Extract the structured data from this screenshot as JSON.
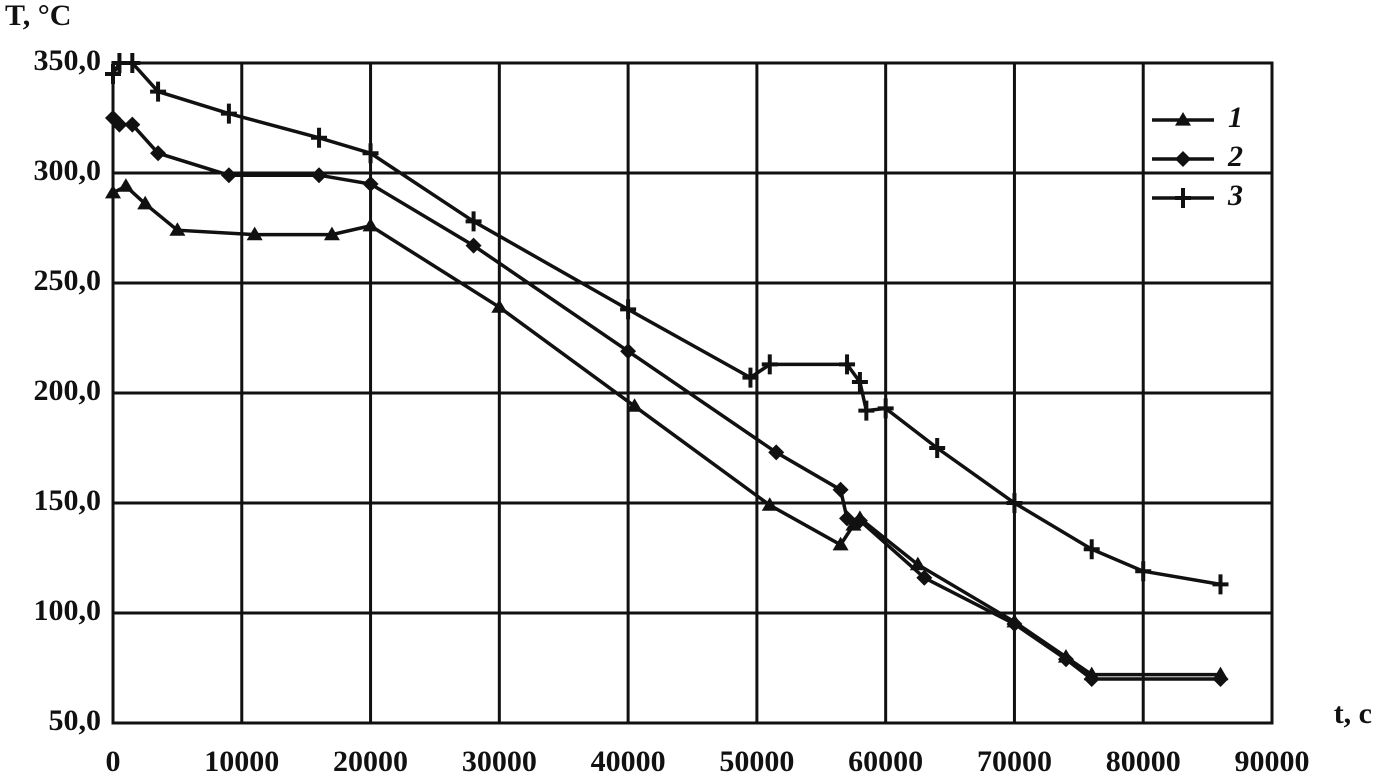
{
  "chart_data": {
    "type": "line",
    "y_label": "T, °C",
    "x_label": "t, c",
    "series": [
      {
        "name": "1",
        "color": "#111111",
        "marker": "triangle",
        "x": [
          0,
          1000,
          2500,
          5000,
          11000,
          17000,
          20000,
          30000,
          40500,
          51000,
          56500,
          57500,
          58000,
          62500,
          70000,
          74000,
          76000,
          86000
        ],
        "values": [
          291,
          294,
          286,
          274,
          272,
          272,
          276,
          239,
          194,
          149,
          131,
          140,
          143,
          122,
          96,
          80,
          72,
          72
        ]
      },
      {
        "name": "2",
        "color": "#111111",
        "marker": "diamond",
        "x": [
          0,
          500,
          1500,
          3500,
          9000,
          16000,
          20000,
          28000,
          40000,
          51500,
          56500,
          57000,
          58000,
          63000,
          70000,
          74000,
          76000,
          86000
        ],
        "values": [
          325,
          322,
          322,
          309,
          299,
          299,
          295,
          267,
          219,
          173,
          156,
          143,
          142,
          116,
          95,
          79,
          70,
          70
        ]
      },
      {
        "name": "3",
        "color": "#111111",
        "marker": "plus",
        "x": [
          0,
          500,
          1500,
          3500,
          9000,
          16000,
          20000,
          28000,
          40000,
          49500,
          51000,
          57000,
          58000,
          58500,
          60000,
          64000,
          70000,
          76000,
          80000,
          86000
        ],
        "values": [
          345,
          350,
          350,
          337,
          327,
          316,
          309,
          278,
          238,
          207,
          213,
          213,
          205,
          192,
          193,
          175,
          150,
          129,
          119,
          113
        ]
      }
    ],
    "xlim": [
      0,
      90000
    ],
    "xticks": [
      0,
      10000,
      20000,
      30000,
      40000,
      50000,
      60000,
      70000,
      80000,
      90000
    ],
    "ylim": [
      50,
      350
    ],
    "yticks": [
      {
        "value": 50,
        "label": "50,0"
      },
      {
        "value": 100,
        "label": "100,0"
      },
      {
        "value": 150,
        "label": "150,0"
      },
      {
        "value": 200,
        "label": "200,0"
      },
      {
        "value": 250,
        "label": "250,0"
      },
      {
        "value": 300,
        "label": "300,0"
      },
      {
        "value": 350,
        "label": "350,0"
      }
    ],
    "grid": true,
    "legend": "upper right"
  }
}
